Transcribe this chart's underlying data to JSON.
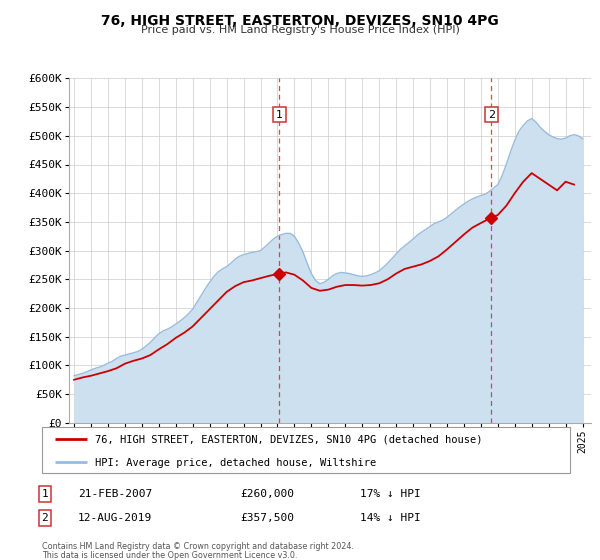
{
  "title": "76, HIGH STREET, EASTERTON, DEVIZES, SN10 4PG",
  "subtitle": "Price paid vs. HM Land Registry's House Price Index (HPI)",
  "hpi_label": "HPI: Average price, detached house, Wiltshire",
  "property_label": "76, HIGH STREET, EASTERTON, DEVIZES, SN10 4PG (detached house)",
  "footer1": "Contains HM Land Registry data © Crown copyright and database right 2024.",
  "footer2": "This data is licensed under the Open Government Licence v3.0.",
  "sale1_date": "21-FEB-2007",
  "sale1_price": "£260,000",
  "sale1_hpi": "17% ↓ HPI",
  "sale1_year": 2007.12,
  "sale1_value": 260000,
  "sale2_date": "12-AUG-2019",
  "sale2_price": "£357,500",
  "sale2_hpi": "14% ↓ HPI",
  "sale2_year": 2019.62,
  "sale2_value": 357500,
  "property_color": "#cc0000",
  "hpi_color": "#99bbdd",
  "hpi_fill_color": "#cce0f0",
  "vline_color": "#dd3333",
  "marker_color": "#cc0000",
  "ylim": [
    0,
    600000
  ],
  "xlim_start": 1994.7,
  "xlim_end": 2025.5,
  "hpi_x": [
    1995.0,
    1995.25,
    1995.5,
    1995.75,
    1996.0,
    1996.25,
    1996.5,
    1996.75,
    1997.0,
    1997.25,
    1997.5,
    1997.75,
    1998.0,
    1998.25,
    1998.5,
    1998.75,
    1999.0,
    1999.25,
    1999.5,
    1999.75,
    2000.0,
    2000.25,
    2000.5,
    2000.75,
    2001.0,
    2001.25,
    2001.5,
    2001.75,
    2002.0,
    2002.25,
    2002.5,
    2002.75,
    2003.0,
    2003.25,
    2003.5,
    2003.75,
    2004.0,
    2004.25,
    2004.5,
    2004.75,
    2005.0,
    2005.25,
    2005.5,
    2005.75,
    2006.0,
    2006.25,
    2006.5,
    2006.75,
    2007.0,
    2007.25,
    2007.5,
    2007.75,
    2008.0,
    2008.25,
    2008.5,
    2008.75,
    2009.0,
    2009.25,
    2009.5,
    2009.75,
    2010.0,
    2010.25,
    2010.5,
    2010.75,
    2011.0,
    2011.25,
    2011.5,
    2011.75,
    2012.0,
    2012.25,
    2012.5,
    2012.75,
    2013.0,
    2013.25,
    2013.5,
    2013.75,
    2014.0,
    2014.25,
    2014.5,
    2014.75,
    2015.0,
    2015.25,
    2015.5,
    2015.75,
    2016.0,
    2016.25,
    2016.5,
    2016.75,
    2017.0,
    2017.25,
    2017.5,
    2017.75,
    2018.0,
    2018.25,
    2018.5,
    2018.75,
    2019.0,
    2019.25,
    2019.5,
    2019.75,
    2020.0,
    2020.25,
    2020.5,
    2020.75,
    2021.0,
    2021.25,
    2021.5,
    2021.75,
    2022.0,
    2022.25,
    2022.5,
    2022.75,
    2023.0,
    2023.25,
    2023.5,
    2023.75,
    2024.0,
    2024.25,
    2024.5,
    2024.75,
    2025.0
  ],
  "hpi_y": [
    82000,
    84000,
    86000,
    89000,
    92000,
    95000,
    97000,
    100000,
    104000,
    107000,
    112000,
    116000,
    118000,
    120000,
    122000,
    124000,
    128000,
    134000,
    140000,
    148000,
    155000,
    160000,
    163000,
    167000,
    172000,
    177000,
    183000,
    190000,
    198000,
    210000,
    222000,
    234000,
    245000,
    255000,
    263000,
    268000,
    272000,
    278000,
    285000,
    290000,
    293000,
    295000,
    297000,
    298000,
    300000,
    306000,
    313000,
    320000,
    325000,
    328000,
    330000,
    330000,
    325000,
    313000,
    298000,
    278000,
    260000,
    248000,
    242000,
    245000,
    250000,
    256000,
    260000,
    262000,
    261000,
    260000,
    258000,
    256000,
    255000,
    256000,
    258000,
    261000,
    265000,
    271000,
    278000,
    286000,
    294000,
    302000,
    308000,
    314000,
    320000,
    327000,
    332000,
    337000,
    342000,
    347000,
    350000,
    353000,
    358000,
    364000,
    370000,
    376000,
    381000,
    386000,
    390000,
    393000,
    396000,
    398000,
    403000,
    409000,
    415000,
    430000,
    450000,
    472000,
    492000,
    508000,
    518000,
    526000,
    530000,
    524000,
    515000,
    508000,
    502000,
    498000,
    495000,
    494000,
    496000,
    500000,
    502000,
    500000,
    495000
  ],
  "prop_x": [
    1995.0,
    1995.5,
    1996.0,
    1996.5,
    1997.0,
    1997.5,
    1998.0,
    1998.5,
    1999.0,
    1999.5,
    2000.0,
    2000.5,
    2001.0,
    2001.5,
    2002.0,
    2002.5,
    2003.0,
    2003.5,
    2004.0,
    2004.5,
    2005.0,
    2005.5,
    2006.0,
    2006.5,
    2007.12,
    2007.5,
    2008.0,
    2008.5,
    2009.0,
    2009.5,
    2010.0,
    2010.5,
    2011.0,
    2011.5,
    2012.0,
    2012.5,
    2013.0,
    2013.5,
    2014.0,
    2014.5,
    2015.0,
    2015.5,
    2016.0,
    2016.5,
    2017.0,
    2017.5,
    2018.0,
    2018.5,
    2019.0,
    2019.62,
    2020.0,
    2020.5,
    2021.0,
    2021.5,
    2022.0,
    2022.5,
    2023.0,
    2023.5,
    2024.0,
    2024.5
  ],
  "prop_y": [
    75000,
    79000,
    82000,
    86000,
    90000,
    95000,
    103000,
    108000,
    112000,
    118000,
    128000,
    137000,
    148000,
    157000,
    168000,
    183000,
    198000,
    213000,
    228000,
    238000,
    245000,
    248000,
    252000,
    256000,
    260000,
    262000,
    258000,
    248000,
    235000,
    230000,
    232000,
    237000,
    240000,
    240000,
    239000,
    240000,
    243000,
    250000,
    260000,
    268000,
    272000,
    276000,
    282000,
    290000,
    302000,
    315000,
    328000,
    340000,
    348000,
    357500,
    362000,
    378000,
    400000,
    420000,
    435000,
    425000,
    415000,
    405000,
    420000,
    415000
  ]
}
